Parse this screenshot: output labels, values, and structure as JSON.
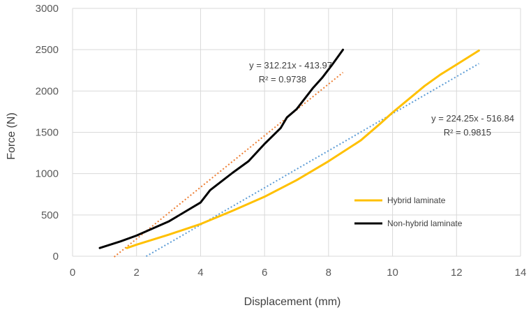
{
  "chart_data": {
    "type": "line",
    "xlabel": "Displacement (mm)",
    "ylabel": "Force (N)",
    "xlim": [
      0,
      14
    ],
    "ylim": [
      0,
      3000
    ],
    "xticks": [
      0,
      2,
      4,
      6,
      8,
      10,
      12,
      14
    ],
    "yticks": [
      0,
      500,
      1000,
      1500,
      2000,
      2500,
      3000
    ],
    "grid": "vertical and horizontal major gridlines",
    "legend_position": "lower-right",
    "series": [
      {
        "name": "Hybrid laminate",
        "color": "#FFC000",
        "points": [
          [
            1.7,
            100
          ],
          [
            2,
            140
          ],
          [
            3,
            260
          ],
          [
            4,
            390
          ],
          [
            5,
            550
          ],
          [
            6,
            720
          ],
          [
            7,
            920
          ],
          [
            8,
            1150
          ],
          [
            9,
            1400
          ],
          [
            9.6,
            1600
          ],
          [
            10,
            1740
          ],
          [
            10.5,
            1900
          ],
          [
            11,
            2060
          ],
          [
            11.5,
            2200
          ],
          [
            12,
            2320
          ],
          [
            12.7,
            2490
          ]
        ]
      },
      {
        "name": "Non-hybrid laminate",
        "color": "#000000",
        "points": [
          [
            0.85,
            100
          ],
          [
            1.5,
            180
          ],
          [
            2,
            250
          ],
          [
            3,
            420
          ],
          [
            4,
            650
          ],
          [
            4.3,
            800
          ],
          [
            5,
            1010
          ],
          [
            5.5,
            1150
          ],
          [
            6,
            1360
          ],
          [
            6.5,
            1550
          ],
          [
            6.7,
            1680
          ],
          [
            7,
            1780
          ],
          [
            7.5,
            2030
          ],
          [
            7.8,
            2160
          ],
          [
            8.1,
            2310
          ],
          [
            8.45,
            2500
          ]
        ]
      }
    ],
    "trendlines": [
      {
        "of": "Non-hybrid laminate",
        "color": "#ED7D31",
        "slope": 312.21,
        "intercept": -413.97,
        "x_range": [
          1.3,
          8.45
        ],
        "equation": "y = 312.21x - 413.97",
        "r2": "R² = 0.9738"
      },
      {
        "of": "Hybrid laminate",
        "color": "#5B9BD5",
        "slope": 224.25,
        "intercept": -516.84,
        "x_range": [
          2.3,
          12.7
        ],
        "equation": "y = 224.25x - 516.84",
        "r2": "R² = 0.9815"
      }
    ]
  }
}
